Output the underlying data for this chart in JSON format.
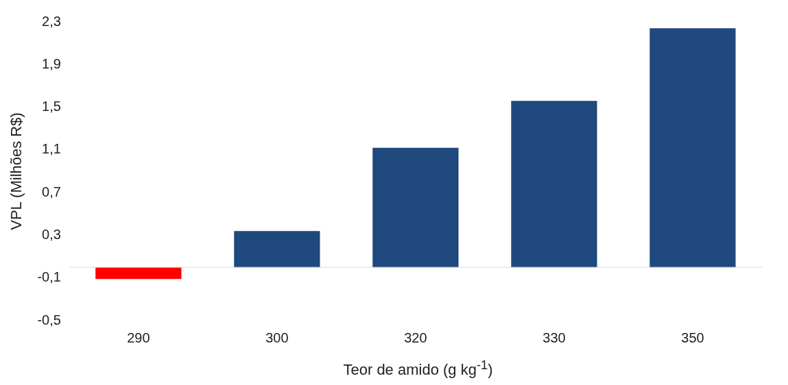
{
  "chart_data": {
    "type": "bar",
    "ylabel": "VPL (Milhões R$)",
    "xlabel": "Teor de amido (g kg$^{-1}$)",
    "categories": [
      "290",
      "300",
      "320",
      "330",
      "350"
    ],
    "values": [
      -0.11,
      0.34,
      1.12,
      1.56,
      2.24
    ],
    "colors": [
      "#ff0000",
      "#1f497d",
      "#1f497d",
      "#1f497d",
      "#1f497d"
    ],
    "ylim": [
      -0.5,
      2.3
    ],
    "yticks": [
      {
        "value": -0.5,
        "label": "-0,5"
      },
      {
        "value": -0.1,
        "label": "-0,1"
      },
      {
        "value": 0.3,
        "label": "0,3"
      },
      {
        "value": 0.7,
        "label": "0,7"
      },
      {
        "value": 1.1,
        "label": "1,1"
      },
      {
        "value": 1.5,
        "label": "1,5"
      },
      {
        "value": 1.9,
        "label": "1,9"
      },
      {
        "value": 2.3,
        "label": "2,3"
      }
    ],
    "grid": false,
    "legend": false
  }
}
